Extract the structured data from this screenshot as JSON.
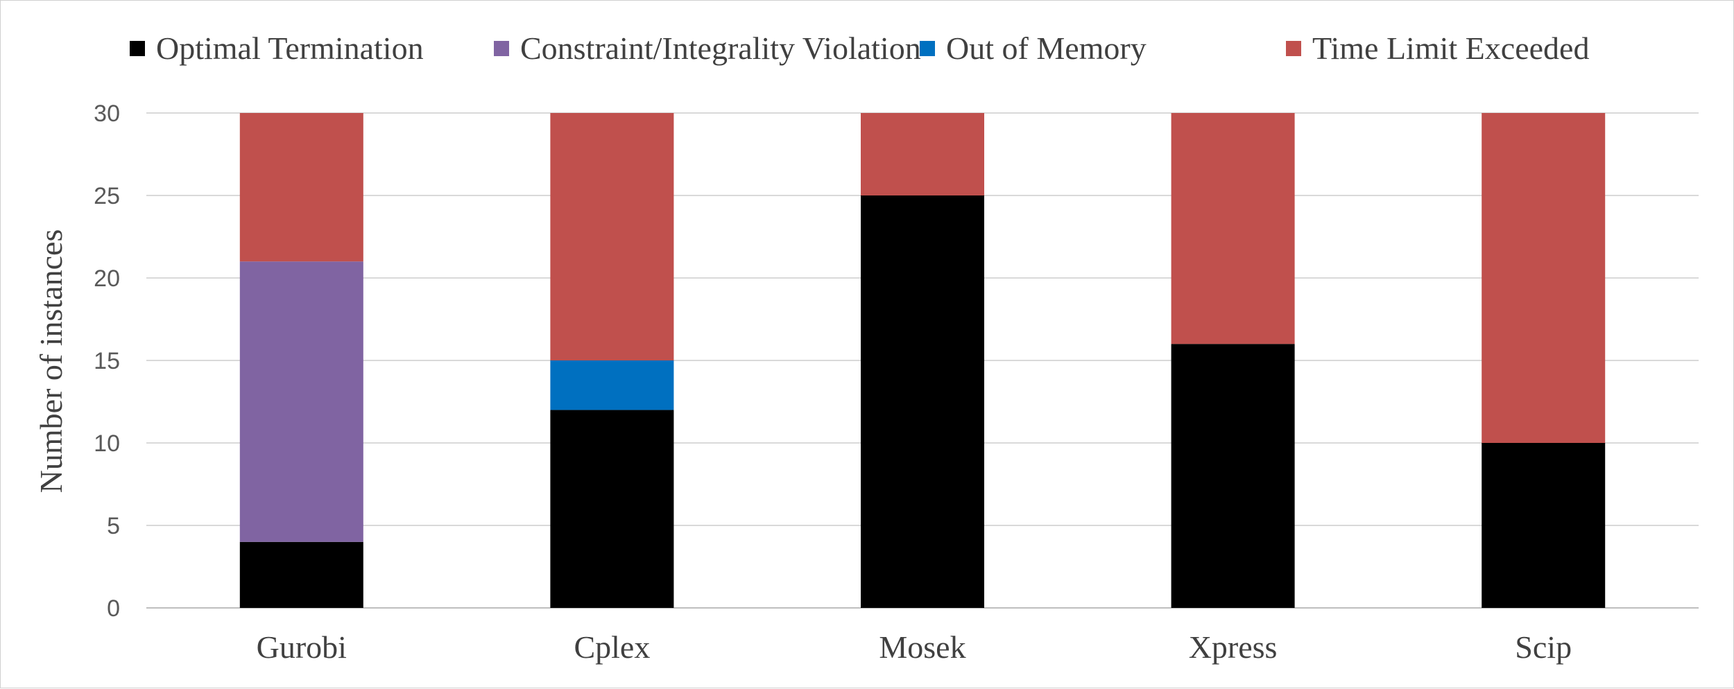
{
  "chart_data": {
    "type": "bar",
    "stacked": true,
    "categories": [
      "Gurobi",
      "Cplex",
      "Mosek",
      "Xpress",
      "Scip"
    ],
    "series": [
      {
        "name": "Optimal Termination",
        "color": "#000000",
        "values": [
          4,
          12,
          25,
          16,
          10
        ]
      },
      {
        "name": "Constraint/Integrality Violation",
        "color": "#8064a2",
        "values": [
          17,
          0,
          0,
          0,
          0
        ]
      },
      {
        "name": "Out of Memory",
        "color": "#0070c0",
        "values": [
          0,
          3,
          0,
          0,
          0
        ]
      },
      {
        "name": "Time Limit Exceeded",
        "color": "#c0504d",
        "values": [
          9,
          15,
          5,
          14,
          20
        ]
      }
    ],
    "title": "",
    "xlabel": "",
    "ylabel": "Number of instances",
    "ylim": [
      0,
      30
    ],
    "yticks": [
      0,
      5,
      10,
      15,
      20,
      25,
      30
    ],
    "grid": true,
    "legend_position": "top"
  }
}
